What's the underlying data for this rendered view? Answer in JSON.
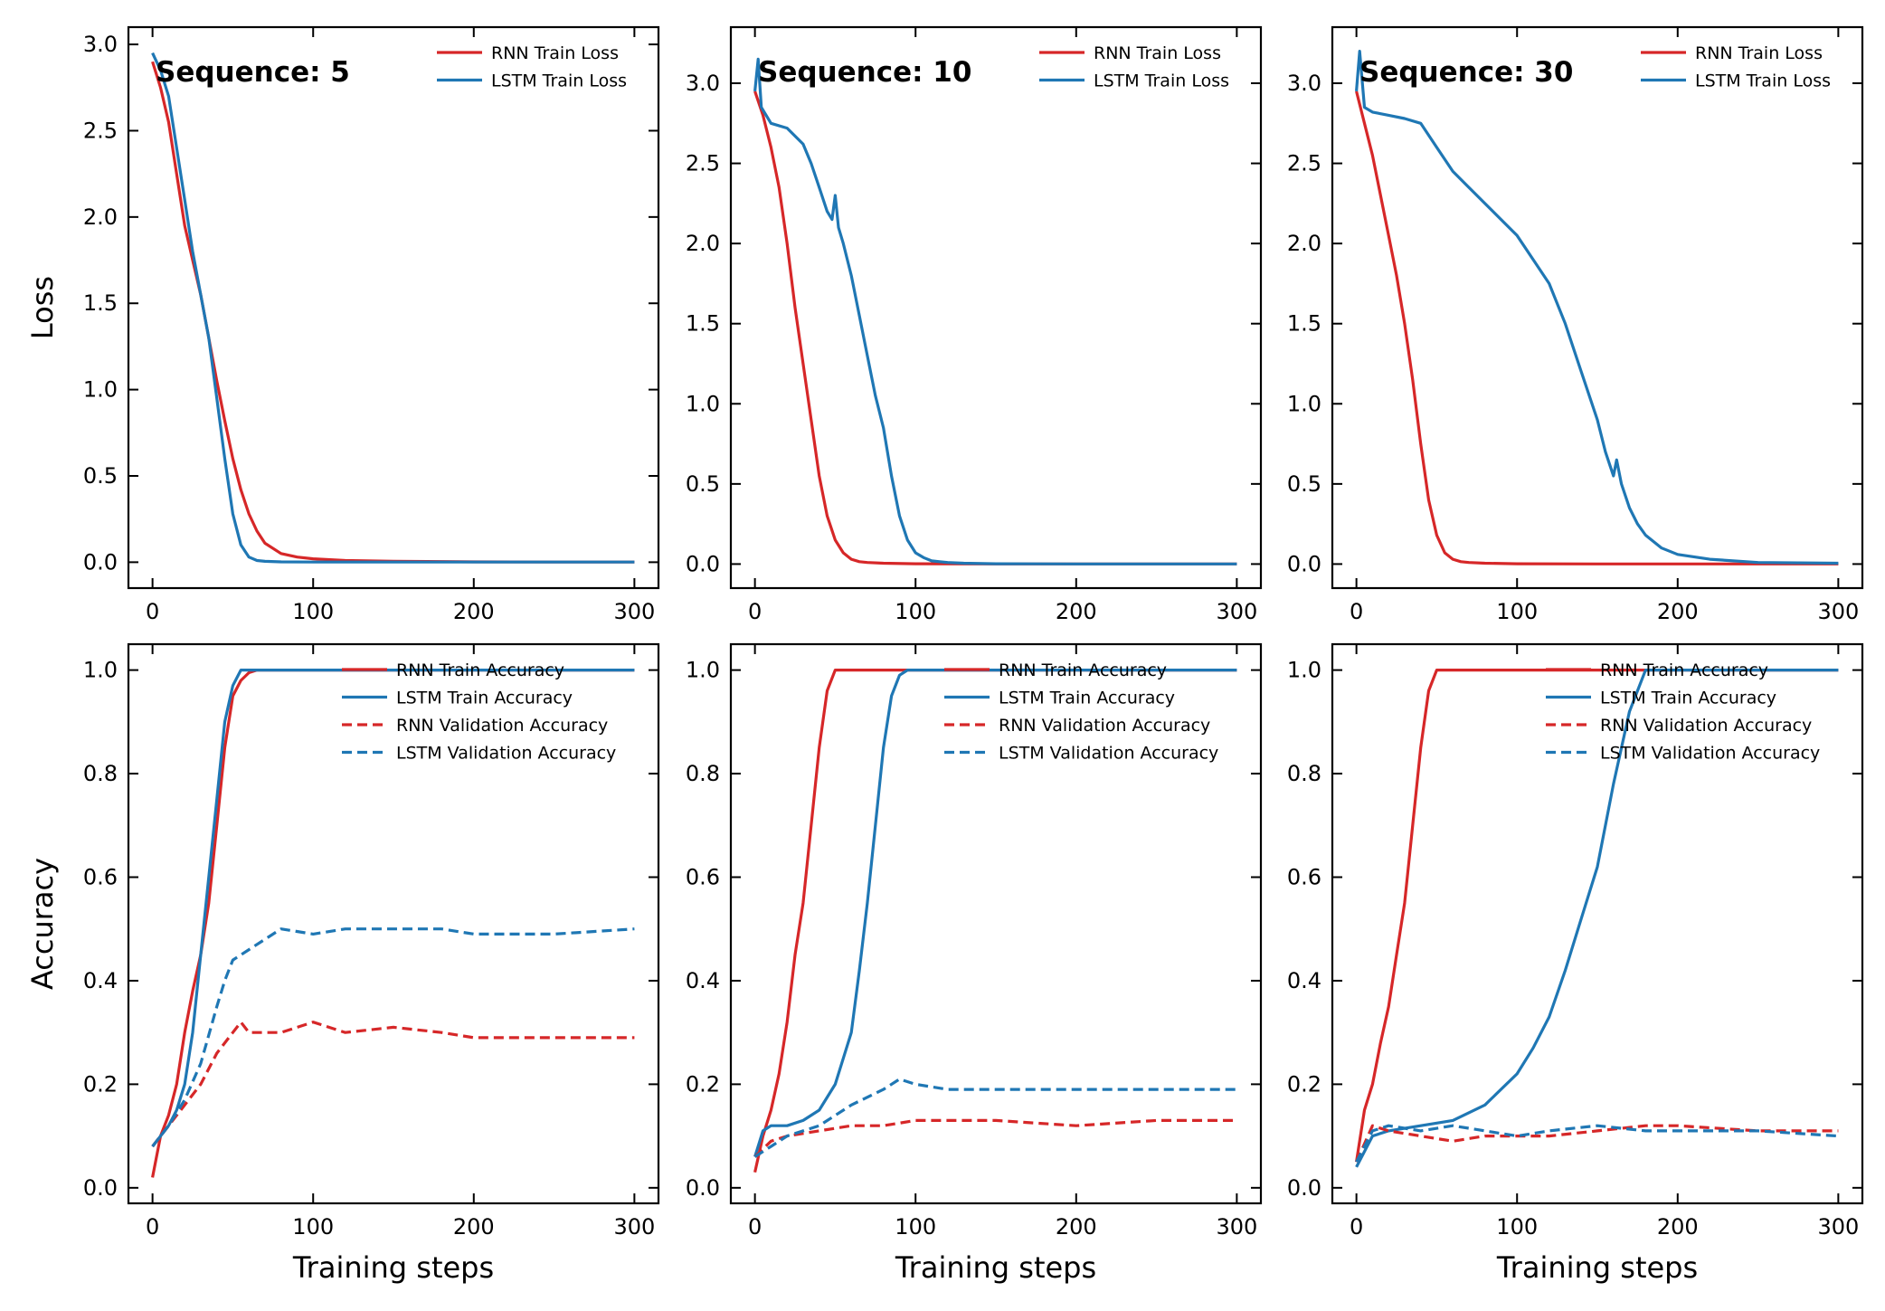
{
  "colors": {
    "rnn": "#d62728",
    "lstm": "#1f77b4"
  },
  "chart_data": [
    {
      "type": "line",
      "panel": "top-left",
      "annotation": "Sequence: 5",
      "xlabel": "",
      "ylabel": "Loss",
      "xlim": [
        -15,
        315
      ],
      "ylim": [
        -0.15,
        3.1
      ],
      "xticks": [
        "0",
        "100",
        "200",
        "300"
      ],
      "yticks": [
        "0.0",
        "0.5",
        "1.0",
        "1.5",
        "2.0",
        "2.5",
        "3.0"
      ],
      "legend_position": "top-right",
      "series": [
        {
          "name": "RNN Train Loss",
          "color": "#d62728",
          "style": "solid",
          "x": [
            0,
            5,
            10,
            15,
            20,
            25,
            30,
            35,
            40,
            45,
            50,
            55,
            60,
            65,
            70,
            80,
            90,
            100,
            120,
            150,
            200,
            250,
            300
          ],
          "y": [
            2.9,
            2.75,
            2.55,
            2.25,
            1.95,
            1.75,
            1.55,
            1.3,
            1.05,
            0.82,
            0.6,
            0.42,
            0.28,
            0.18,
            0.11,
            0.05,
            0.03,
            0.02,
            0.01,
            0.005,
            0.002,
            0.001,
            0.001
          ]
        },
        {
          "name": "LSTM Train Loss",
          "color": "#1f77b4",
          "style": "solid",
          "x": [
            0,
            5,
            10,
            15,
            20,
            25,
            30,
            35,
            40,
            45,
            50,
            55,
            60,
            65,
            70,
            80,
            100,
            150,
            200,
            250,
            300
          ],
          "y": [
            2.95,
            2.85,
            2.7,
            2.4,
            2.1,
            1.8,
            1.55,
            1.3,
            0.95,
            0.6,
            0.28,
            0.1,
            0.03,
            0.01,
            0.005,
            0.002,
            0.001,
            0.001,
            0.001,
            0.001,
            0.001
          ]
        }
      ]
    },
    {
      "type": "line",
      "panel": "top-middle",
      "annotation": "Sequence: 10",
      "xlabel": "",
      "ylabel": "",
      "xlim": [
        -15,
        315
      ],
      "ylim": [
        -0.15,
        3.35
      ],
      "xticks": [
        "0",
        "100",
        "200",
        "300"
      ],
      "yticks": [
        "0.0",
        "0.5",
        "1.0",
        "1.5",
        "2.0",
        "2.5",
        "3.0"
      ],
      "legend_position": "top-right",
      "series": [
        {
          "name": "RNN Train Loss",
          "color": "#d62728",
          "style": "solid",
          "x": [
            0,
            5,
            10,
            15,
            20,
            25,
            30,
            35,
            40,
            45,
            50,
            55,
            60,
            65,
            70,
            80,
            100,
            150,
            200,
            250,
            300
          ],
          "y": [
            2.95,
            2.8,
            2.6,
            2.35,
            2.0,
            1.6,
            1.25,
            0.9,
            0.55,
            0.3,
            0.15,
            0.07,
            0.03,
            0.015,
            0.01,
            0.005,
            0.002,
            0.001,
            0.001,
            0.001,
            0.001
          ]
        },
        {
          "name": "LSTM Train Loss",
          "color": "#1f77b4",
          "style": "solid",
          "x": [
            0,
            2,
            4,
            10,
            20,
            30,
            35,
            40,
            45,
            48,
            50,
            52,
            55,
            60,
            65,
            70,
            75,
            80,
            85,
            90,
            95,
            100,
            105,
            110,
            115,
            120,
            130,
            150,
            200,
            250,
            300
          ],
          "y": [
            2.95,
            3.15,
            2.85,
            2.75,
            2.72,
            2.62,
            2.5,
            2.35,
            2.2,
            2.15,
            2.3,
            2.1,
            2.0,
            1.8,
            1.55,
            1.3,
            1.05,
            0.85,
            0.55,
            0.3,
            0.15,
            0.07,
            0.04,
            0.02,
            0.015,
            0.01,
            0.005,
            0.002,
            0.001,
            0.001,
            0.001
          ]
        }
      ]
    },
    {
      "type": "line",
      "panel": "top-right",
      "annotation": "Sequence: 30",
      "xlabel": "",
      "ylabel": "",
      "xlim": [
        -15,
        315
      ],
      "ylim": [
        -0.15,
        3.35
      ],
      "xticks": [
        "0",
        "100",
        "200",
        "300"
      ],
      "yticks": [
        "0.0",
        "0.5",
        "1.0",
        "1.5",
        "2.0",
        "2.5",
        "3.0"
      ],
      "legend_position": "top-right",
      "series": [
        {
          "name": "RNN Train Loss",
          "color": "#d62728",
          "style": "solid",
          "x": [
            0,
            5,
            10,
            15,
            20,
            25,
            30,
            35,
            40,
            45,
            50,
            55,
            60,
            65,
            70,
            80,
            100,
            150,
            200,
            250,
            300
          ],
          "y": [
            2.95,
            2.75,
            2.55,
            2.3,
            2.05,
            1.8,
            1.5,
            1.15,
            0.75,
            0.4,
            0.18,
            0.07,
            0.03,
            0.015,
            0.01,
            0.005,
            0.002,
            0.001,
            0.001,
            0.001,
            0.001
          ]
        },
        {
          "name": "LSTM Train Loss",
          "color": "#1f77b4",
          "style": "solid",
          "x": [
            0,
            2,
            5,
            10,
            20,
            30,
            40,
            50,
            60,
            70,
            80,
            90,
            100,
            110,
            120,
            130,
            140,
            150,
            155,
            160,
            162,
            165,
            170,
            175,
            180,
            190,
            200,
            220,
            250,
            300
          ],
          "y": [
            2.95,
            3.2,
            2.85,
            2.82,
            2.8,
            2.78,
            2.75,
            2.6,
            2.45,
            2.35,
            2.25,
            2.15,
            2.05,
            1.9,
            1.75,
            1.5,
            1.2,
            0.9,
            0.7,
            0.55,
            0.65,
            0.5,
            0.35,
            0.25,
            0.18,
            0.1,
            0.06,
            0.03,
            0.01,
            0.005
          ]
        }
      ]
    },
    {
      "type": "line",
      "panel": "bottom-left",
      "xlabel": "Training steps",
      "ylabel": "Accuracy",
      "xlim": [
        -15,
        315
      ],
      "ylim": [
        -0.03,
        1.05
      ],
      "xticks": [
        "0",
        "100",
        "200",
        "300"
      ],
      "yticks": [
        "0.0",
        "0.2",
        "0.4",
        "0.6",
        "0.8",
        "1.0"
      ],
      "legend_position": "top-right",
      "series": [
        {
          "name": "RNN Train Accuracy",
          "color": "#d62728",
          "style": "solid",
          "x": [
            0,
            5,
            10,
            15,
            20,
            25,
            30,
            35,
            40,
            45,
            50,
            55,
            60,
            65,
            70,
            80,
            100,
            150,
            200,
            250,
            300
          ],
          "y": [
            0.02,
            0.1,
            0.14,
            0.2,
            0.3,
            0.38,
            0.45,
            0.55,
            0.7,
            0.85,
            0.95,
            0.98,
            0.995,
            1.0,
            1.0,
            1.0,
            1.0,
            1.0,
            1.0,
            1.0,
            1.0
          ]
        },
        {
          "name": "LSTM Train Accuracy",
          "color": "#1f77b4",
          "style": "solid",
          "x": [
            0,
            5,
            10,
            15,
            20,
            25,
            30,
            35,
            40,
            45,
            50,
            55,
            60,
            65,
            80,
            100,
            150,
            200,
            250,
            300
          ],
          "y": [
            0.08,
            0.1,
            0.12,
            0.15,
            0.2,
            0.3,
            0.45,
            0.6,
            0.75,
            0.9,
            0.97,
            1.0,
            1.0,
            1.0,
            1.0,
            1.0,
            1.0,
            1.0,
            1.0,
            1.0
          ]
        },
        {
          "name": "RNN Validation Accuracy",
          "color": "#d62728",
          "style": "dashed",
          "x": [
            0,
            10,
            20,
            30,
            40,
            50,
            55,
            60,
            70,
            80,
            100,
            120,
            150,
            180,
            200,
            250,
            300
          ],
          "y": [
            0.08,
            0.12,
            0.16,
            0.2,
            0.26,
            0.3,
            0.32,
            0.3,
            0.3,
            0.3,
            0.32,
            0.3,
            0.31,
            0.3,
            0.29,
            0.29,
            0.29
          ]
        },
        {
          "name": "LSTM Validation Accuracy",
          "color": "#1f77b4",
          "style": "dashed",
          "x": [
            0,
            10,
            20,
            30,
            40,
            45,
            50,
            60,
            70,
            80,
            100,
            120,
            150,
            180,
            200,
            250,
            300
          ],
          "y": [
            0.08,
            0.12,
            0.17,
            0.24,
            0.35,
            0.4,
            0.44,
            0.46,
            0.48,
            0.5,
            0.49,
            0.5,
            0.5,
            0.5,
            0.49,
            0.49,
            0.5
          ]
        }
      ]
    },
    {
      "type": "line",
      "panel": "bottom-middle",
      "xlabel": "Training steps",
      "ylabel": "",
      "xlim": [
        -15,
        315
      ],
      "ylim": [
        -0.03,
        1.05
      ],
      "xticks": [
        "0",
        "100",
        "200",
        "300"
      ],
      "yticks": [
        "0.0",
        "0.2",
        "0.4",
        "0.6",
        "0.8",
        "1.0"
      ],
      "legend_position": "top-right",
      "series": [
        {
          "name": "RNN Train Accuracy",
          "color": "#d62728",
          "style": "solid",
          "x": [
            0,
            5,
            10,
            15,
            20,
            25,
            30,
            35,
            40,
            45,
            50,
            55,
            60,
            80,
            100,
            150,
            200,
            250,
            300
          ],
          "y": [
            0.03,
            0.1,
            0.15,
            0.22,
            0.32,
            0.45,
            0.55,
            0.7,
            0.85,
            0.96,
            1.0,
            1.0,
            1.0,
            1.0,
            1.0,
            1.0,
            1.0,
            1.0,
            1.0
          ]
        },
        {
          "name": "LSTM Train Accuracy",
          "color": "#1f77b4",
          "style": "solid",
          "x": [
            0,
            5,
            10,
            20,
            30,
            40,
            50,
            55,
            60,
            65,
            70,
            75,
            80,
            85,
            90,
            95,
            100,
            110,
            150,
            200,
            250,
            300
          ],
          "y": [
            0.06,
            0.11,
            0.12,
            0.12,
            0.13,
            0.15,
            0.2,
            0.25,
            0.3,
            0.42,
            0.55,
            0.7,
            0.85,
            0.95,
            0.99,
            1.0,
            1.0,
            1.0,
            1.0,
            1.0,
            1.0,
            1.0
          ]
        },
        {
          "name": "RNN Validation Accuracy",
          "color": "#d62728",
          "style": "dashed",
          "x": [
            0,
            10,
            20,
            40,
            60,
            80,
            100,
            120,
            150,
            200,
            250,
            300
          ],
          "y": [
            0.06,
            0.09,
            0.1,
            0.11,
            0.12,
            0.12,
            0.13,
            0.13,
            0.13,
            0.12,
            0.13,
            0.13
          ]
        },
        {
          "name": "LSTM Validation Accuracy",
          "color": "#1f77b4",
          "style": "dashed",
          "x": [
            0,
            10,
            20,
            40,
            60,
            80,
            90,
            100,
            120,
            150,
            200,
            250,
            300
          ],
          "y": [
            0.06,
            0.08,
            0.1,
            0.12,
            0.16,
            0.19,
            0.21,
            0.2,
            0.19,
            0.19,
            0.19,
            0.19,
            0.19
          ]
        }
      ]
    },
    {
      "type": "line",
      "panel": "bottom-right",
      "xlabel": "Training steps",
      "ylabel": "",
      "xlim": [
        -15,
        315
      ],
      "ylim": [
        -0.03,
        1.05
      ],
      "xticks": [
        "0",
        "100",
        "200",
        "300"
      ],
      "yticks": [
        "0.0",
        "0.2",
        "0.4",
        "0.6",
        "0.8",
        "1.0"
      ],
      "legend_position": "top-right",
      "series": [
        {
          "name": "RNN Train Accuracy",
          "color": "#d62728",
          "style": "solid",
          "x": [
            0,
            5,
            10,
            15,
            20,
            25,
            30,
            35,
            40,
            45,
            50,
            55,
            60,
            80,
            100,
            150,
            200,
            250,
            300
          ],
          "y": [
            0.05,
            0.15,
            0.2,
            0.28,
            0.35,
            0.45,
            0.55,
            0.7,
            0.85,
            0.96,
            1.0,
            1.0,
            1.0,
            1.0,
            1.0,
            1.0,
            1.0,
            1.0,
            1.0
          ]
        },
        {
          "name": "LSTM Train Accuracy",
          "color": "#1f77b4",
          "style": "solid",
          "x": [
            0,
            10,
            20,
            40,
            60,
            80,
            100,
            110,
            120,
            130,
            140,
            150,
            160,
            170,
            180,
            190,
            200,
            250,
            300
          ],
          "y": [
            0.04,
            0.1,
            0.11,
            0.12,
            0.13,
            0.16,
            0.22,
            0.27,
            0.33,
            0.42,
            0.52,
            0.62,
            0.78,
            0.92,
            1.0,
            1.0,
            1.0,
            1.0,
            1.0
          ]
        },
        {
          "name": "RNN Validation Accuracy",
          "color": "#d62728",
          "style": "dashed",
          "x": [
            0,
            10,
            20,
            40,
            60,
            80,
            100,
            120,
            150,
            180,
            200,
            250,
            300
          ],
          "y": [
            0.05,
            0.12,
            0.11,
            0.1,
            0.09,
            0.1,
            0.1,
            0.1,
            0.11,
            0.12,
            0.12,
            0.11,
            0.11
          ]
        },
        {
          "name": "LSTM Validation Accuracy",
          "color": "#1f77b4",
          "style": "dashed",
          "x": [
            0,
            10,
            20,
            40,
            60,
            80,
            100,
            120,
            150,
            180,
            200,
            250,
            300
          ],
          "y": [
            0.05,
            0.11,
            0.12,
            0.11,
            0.12,
            0.11,
            0.1,
            0.11,
            0.12,
            0.11,
            0.11,
            0.11,
            0.1
          ]
        }
      ]
    }
  ]
}
